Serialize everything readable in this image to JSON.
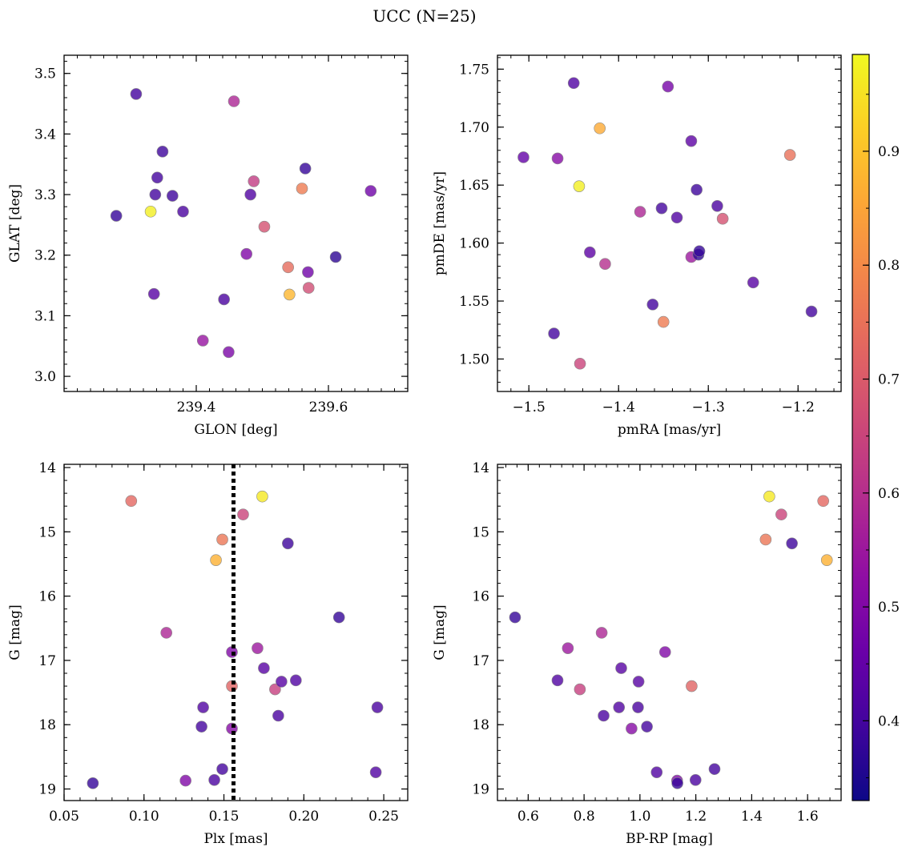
{
  "figure": {
    "title": "UCC (N=25)",
    "background": "#ffffff",
    "colormap": "plasma",
    "point_edge_color": "#888888",
    "threshold_line_color": "#000000"
  },
  "colorbar": {
    "range": [
      0.33,
      0.985
    ],
    "ticks": [
      0.4,
      0.5,
      0.6,
      0.7,
      0.8,
      0.9
    ],
    "tick_labels": [
      "0.4",
      "0.5",
      "0.6",
      "0.7",
      "0.8",
      "0.9"
    ]
  },
  "chart_data": [
    {
      "type": "scatter",
      "id": "glon-glat",
      "xlabel": "GLON [deg]",
      "ylabel": "GLAT [deg]",
      "xlim": [
        239.2,
        239.72
      ],
      "ylim": [
        2.975,
        3.53
      ],
      "x_major_ticks": [
        239.4,
        239.6
      ],
      "x_tick_labels": [
        "239.4",
        "239.6"
      ],
      "x_minor_step": 0.02,
      "y_major_ticks": [
        3.0,
        3.1,
        3.2,
        3.3,
        3.4,
        3.5
      ],
      "y_tick_labels": [
        "3.0",
        "3.1",
        "3.2",
        "3.3",
        "3.4",
        "3.5"
      ],
      "y_minor_step": 0.02,
      "y_inverted": false,
      "points": [
        {
          "x": 239.279,
          "y": 3.265,
          "c": 0.38
        },
        {
          "x": 239.309,
          "y": 3.466,
          "c": 0.4
        },
        {
          "x": 239.331,
          "y": 3.272,
          "c": 0.97
        },
        {
          "x": 239.336,
          "y": 3.136,
          "c": 0.43
        },
        {
          "x": 239.338,
          "y": 3.3,
          "c": 0.4
        },
        {
          "x": 239.341,
          "y": 3.328,
          "c": 0.4
        },
        {
          "x": 239.349,
          "y": 3.371,
          "c": 0.39
        },
        {
          "x": 239.364,
          "y": 3.298,
          "c": 0.39
        },
        {
          "x": 239.38,
          "y": 3.272,
          "c": 0.41
        },
        {
          "x": 239.41,
          "y": 3.059,
          "c": 0.54
        },
        {
          "x": 239.442,
          "y": 3.127,
          "c": 0.41
        },
        {
          "x": 239.449,
          "y": 3.04,
          "c": 0.49
        },
        {
          "x": 239.457,
          "y": 3.454,
          "c": 0.58
        },
        {
          "x": 239.476,
          "y": 3.202,
          "c": 0.5
        },
        {
          "x": 239.482,
          "y": 3.3,
          "c": 0.42
        },
        {
          "x": 239.487,
          "y": 3.322,
          "c": 0.63
        },
        {
          "x": 239.503,
          "y": 3.247,
          "c": 0.68
        },
        {
          "x": 239.539,
          "y": 3.18,
          "c": 0.74
        },
        {
          "x": 239.541,
          "y": 3.135,
          "c": 0.88
        },
        {
          "x": 239.56,
          "y": 3.31,
          "c": 0.77
        },
        {
          "x": 239.565,
          "y": 3.343,
          "c": 0.38
        },
        {
          "x": 239.569,
          "y": 3.172,
          "c": 0.47
        },
        {
          "x": 239.57,
          "y": 3.146,
          "c": 0.67
        },
        {
          "x": 239.611,
          "y": 3.197,
          "c": 0.37
        },
        {
          "x": 239.664,
          "y": 3.306,
          "c": 0.47
        }
      ]
    },
    {
      "type": "scatter",
      "id": "pmra-pmde",
      "xlabel": "pmRA [mas/yr]",
      "ylabel": "pmDE [mas/yr]",
      "xlim": [
        -1.535,
        -1.152
      ],
      "ylim": [
        1.472,
        1.762
      ],
      "x_major_ticks": [
        -1.5,
        -1.4,
        -1.3,
        -1.2
      ],
      "x_tick_labels": [
        "−1.5",
        "−1.4",
        "−1.3",
        "−1.2"
      ],
      "x_minor_step": 0.02,
      "y_major_ticks": [
        1.5,
        1.55,
        1.6,
        1.65,
        1.7,
        1.75
      ],
      "y_tick_labels": [
        "1.50",
        "1.55",
        "1.60",
        "1.65",
        "1.70",
        "1.75"
      ],
      "y_minor_step": 0.01,
      "y_inverted": false,
      "points": [
        {
          "x": -1.506,
          "y": 1.674,
          "c": 0.45
        },
        {
          "x": -1.472,
          "y": 1.522,
          "c": 0.4
        },
        {
          "x": -1.468,
          "y": 1.673,
          "c": 0.51
        },
        {
          "x": -1.45,
          "y": 1.738,
          "c": 0.42
        },
        {
          "x": -1.444,
          "y": 1.649,
          "c": 0.97
        },
        {
          "x": -1.443,
          "y": 1.496,
          "c": 0.65
        },
        {
          "x": -1.432,
          "y": 1.592,
          "c": 0.44
        },
        {
          "x": -1.421,
          "y": 1.699,
          "c": 0.86
        },
        {
          "x": -1.415,
          "y": 1.582,
          "c": 0.6
        },
        {
          "x": -1.376,
          "y": 1.627,
          "c": 0.58
        },
        {
          "x": -1.362,
          "y": 1.547,
          "c": 0.4
        },
        {
          "x": -1.352,
          "y": 1.63,
          "c": 0.4
        },
        {
          "x": -1.35,
          "y": 1.532,
          "c": 0.77
        },
        {
          "x": -1.345,
          "y": 1.735,
          "c": 0.48
        },
        {
          "x": -1.335,
          "y": 1.622,
          "c": 0.42
        },
        {
          "x": -1.319,
          "y": 1.688,
          "c": 0.44
        },
        {
          "x": -1.319,
          "y": 1.588,
          "c": 0.55
        },
        {
          "x": -1.313,
          "y": 1.646,
          "c": 0.39
        },
        {
          "x": -1.311,
          "y": 1.59,
          "c": 0.37
        },
        {
          "x": -1.31,
          "y": 1.593,
          "c": 0.38
        },
        {
          "x": -1.29,
          "y": 1.632,
          "c": 0.41
        },
        {
          "x": -1.284,
          "y": 1.621,
          "c": 0.68
        },
        {
          "x": -1.25,
          "y": 1.566,
          "c": 0.43
        },
        {
          "x": -1.209,
          "y": 1.676,
          "c": 0.75
        },
        {
          "x": -1.185,
          "y": 1.541,
          "c": 0.4
        }
      ]
    },
    {
      "type": "scatter",
      "id": "plx-g",
      "xlabel": "Plx [mas]",
      "ylabel": "G [mag]",
      "xlim": [
        0.05,
        0.265
      ],
      "ylim": [
        13.95,
        19.18
      ],
      "x_major_ticks": [
        0.05,
        0.1,
        0.15,
        0.2,
        0.25
      ],
      "x_tick_labels": [
        "0.05",
        "0.10",
        "0.15",
        "0.20",
        "0.25"
      ],
      "x_minor_step": 0.01,
      "y_major_ticks": [
        14,
        15,
        16,
        17,
        18,
        19
      ],
      "y_tick_labels": [
        "14",
        "15",
        "16",
        "17",
        "18",
        "19"
      ],
      "y_minor_step": 0.2,
      "y_inverted": true,
      "vline": {
        "x": 0.156
      },
      "points": [
        {
          "x": 0.068,
          "y": 18.91,
          "c": 0.38
        },
        {
          "x": 0.092,
          "y": 14.52,
          "c": 0.73
        },
        {
          "x": 0.114,
          "y": 16.57,
          "c": 0.58
        },
        {
          "x": 0.126,
          "y": 18.87,
          "c": 0.5
        },
        {
          "x": 0.136,
          "y": 18.03,
          "c": 0.4
        },
        {
          "x": 0.137,
          "y": 17.73,
          "c": 0.42
        },
        {
          "x": 0.145,
          "y": 15.44,
          "c": 0.87
        },
        {
          "x": 0.144,
          "y": 18.86,
          "c": 0.41
        },
        {
          "x": 0.149,
          "y": 15.12,
          "c": 0.76
        },
        {
          "x": 0.149,
          "y": 18.69,
          "c": 0.4
        },
        {
          "x": 0.155,
          "y": 16.87,
          "c": 0.5
        },
        {
          "x": 0.155,
          "y": 17.4,
          "c": 0.72
        },
        {
          "x": 0.155,
          "y": 18.06,
          "c": 0.51
        },
        {
          "x": 0.162,
          "y": 14.73,
          "c": 0.65
        },
        {
          "x": 0.171,
          "y": 16.81,
          "c": 0.55
        },
        {
          "x": 0.174,
          "y": 14.45,
          "c": 0.96
        },
        {
          "x": 0.175,
          "y": 17.12,
          "c": 0.43
        },
        {
          "x": 0.182,
          "y": 17.45,
          "c": 0.64
        },
        {
          "x": 0.184,
          "y": 17.86,
          "c": 0.41
        },
        {
          "x": 0.186,
          "y": 17.33,
          "c": 0.43
        },
        {
          "x": 0.19,
          "y": 15.18,
          "c": 0.39
        },
        {
          "x": 0.195,
          "y": 17.31,
          "c": 0.42
        },
        {
          "x": 0.222,
          "y": 16.33,
          "c": 0.38
        },
        {
          "x": 0.245,
          "y": 18.74,
          "c": 0.42
        },
        {
          "x": 0.246,
          "y": 17.73,
          "c": 0.41
        }
      ]
    },
    {
      "type": "scatter",
      "id": "bprp-g",
      "xlabel": "BP-RP [mag]",
      "ylabel": "G [mag]",
      "xlim": [
        0.49,
        1.72
      ],
      "ylim": [
        13.95,
        19.18
      ],
      "x_major_ticks": [
        0.6,
        0.8,
        1.0,
        1.2,
        1.4,
        1.6
      ],
      "x_tick_labels": [
        "0.6",
        "0.8",
        "1.0",
        "1.2",
        "1.4",
        "1.6"
      ],
      "x_minor_step": 0.04,
      "y_major_ticks": [
        14,
        15,
        16,
        17,
        18,
        19
      ],
      "y_tick_labels": [
        "14",
        "15",
        "16",
        "17",
        "18",
        "19"
      ],
      "y_minor_step": 0.2,
      "y_inverted": true,
      "points": [
        {
          "x": 0.553,
          "y": 16.33,
          "c": 0.38
        },
        {
          "x": 0.705,
          "y": 17.31,
          "c": 0.42
        },
        {
          "x": 0.742,
          "y": 16.81,
          "c": 0.55
        },
        {
          "x": 0.785,
          "y": 17.45,
          "c": 0.64
        },
        {
          "x": 0.863,
          "y": 16.57,
          "c": 0.58
        },
        {
          "x": 0.87,
          "y": 17.86,
          "c": 0.41
        },
        {
          "x": 0.925,
          "y": 17.73,
          "c": 0.42
        },
        {
          "x": 0.933,
          "y": 17.12,
          "c": 0.43
        },
        {
          "x": 0.97,
          "y": 18.06,
          "c": 0.51
        },
        {
          "x": 0.993,
          "y": 17.73,
          "c": 0.41
        },
        {
          "x": 0.995,
          "y": 17.33,
          "c": 0.43
        },
        {
          "x": 1.025,
          "y": 18.03,
          "c": 0.4
        },
        {
          "x": 1.06,
          "y": 18.74,
          "c": 0.42
        },
        {
          "x": 1.09,
          "y": 16.87,
          "c": 0.5
        },
        {
          "x": 1.133,
          "y": 18.87,
          "c": 0.5
        },
        {
          "x": 1.134,
          "y": 18.91,
          "c": 0.38
        },
        {
          "x": 1.185,
          "y": 17.4,
          "c": 0.72
        },
        {
          "x": 1.199,
          "y": 18.86,
          "c": 0.41
        },
        {
          "x": 1.267,
          "y": 18.69,
          "c": 0.4
        },
        {
          "x": 1.45,
          "y": 15.12,
          "c": 0.76
        },
        {
          "x": 1.463,
          "y": 14.45,
          "c": 0.96
        },
        {
          "x": 1.506,
          "y": 14.73,
          "c": 0.65
        },
        {
          "x": 1.544,
          "y": 15.18,
          "c": 0.39
        },
        {
          "x": 1.656,
          "y": 14.52,
          "c": 0.73
        },
        {
          "x": 1.669,
          "y": 15.44,
          "c": 0.87
        }
      ]
    }
  ]
}
